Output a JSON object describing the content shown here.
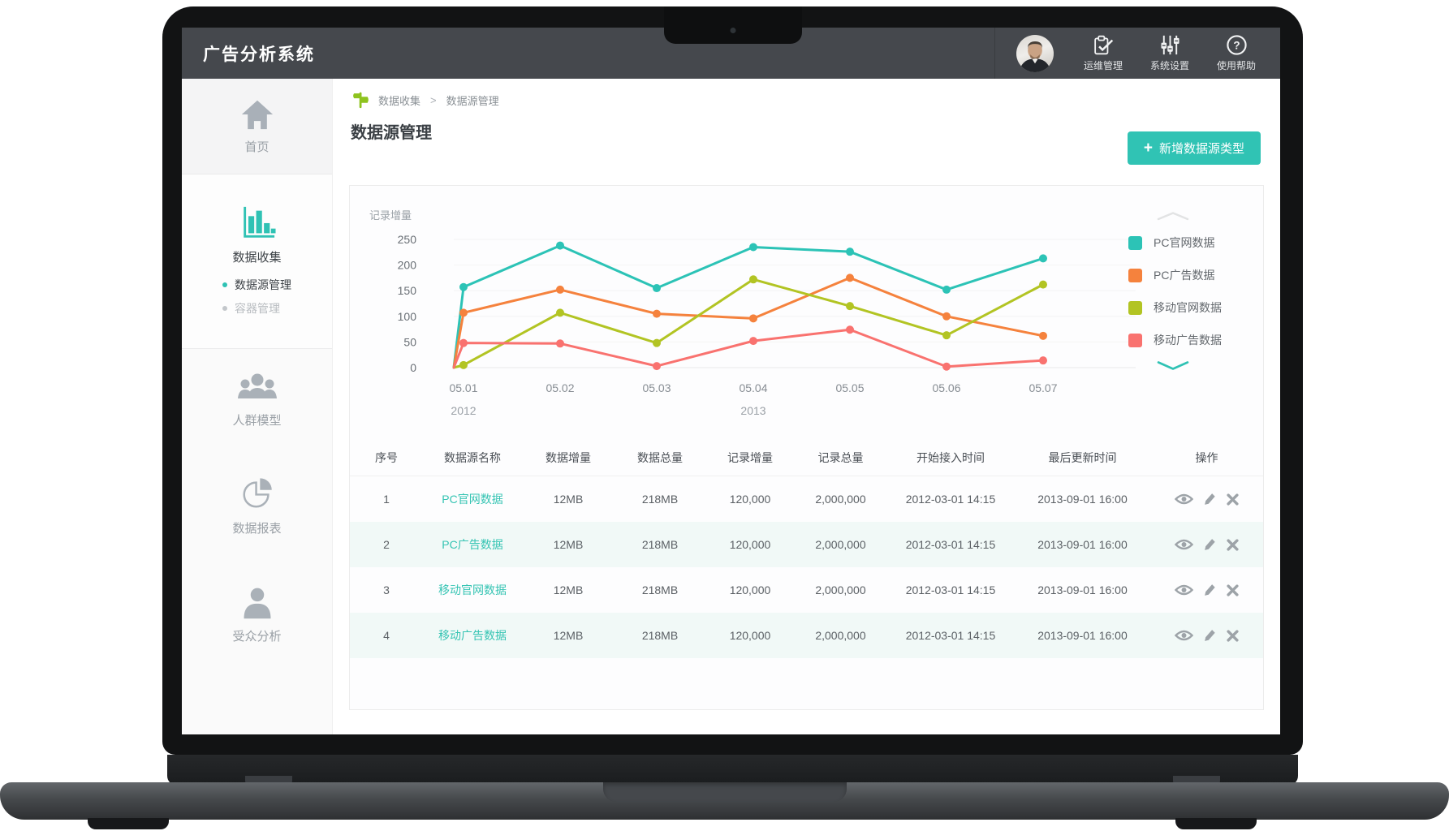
{
  "app": {
    "title": "广告分析系统"
  },
  "topbar": {
    "menu": [
      {
        "label": "运维管理",
        "icon": "clipboard-check-icon"
      },
      {
        "label": "系统设置",
        "icon": "sliders-icon"
      },
      {
        "label": "使用帮助",
        "icon": "help-icon"
      }
    ]
  },
  "sidebar": {
    "items": [
      {
        "label": "首页",
        "icon": "home-icon",
        "active": false
      },
      {
        "label": "数据收集",
        "icon": "bar-chart-icon",
        "active": true,
        "children": [
          {
            "label": "数据源管理",
            "active": true
          },
          {
            "label": "容器管理",
            "active": false
          }
        ]
      },
      {
        "label": "人群模型",
        "icon": "users-icon",
        "active": false
      },
      {
        "label": "数据报表",
        "icon": "pie-chart-icon",
        "active": false
      },
      {
        "label": "受众分析",
        "icon": "user-icon",
        "active": false
      }
    ]
  },
  "breadcrumb": {
    "crumbs": [
      "数据收集",
      "数据源管理"
    ],
    "separator": ">"
  },
  "page": {
    "title": "数据源管理",
    "add_button": {
      "icon": "+",
      "label": "新增数据源类型"
    }
  },
  "chart_data": {
    "type": "line",
    "title": "记录增量",
    "categories": [
      "05.01",
      "05.02",
      "05.03",
      "05.04",
      "05.05",
      "05.06",
      "05.07"
    ],
    "year_labels": [
      {
        "index": 0,
        "label": "2012"
      },
      {
        "index": 3,
        "label": "2013"
      }
    ],
    "y_ticks": [
      0,
      50,
      100,
      150,
      200,
      250
    ],
    "ylim": [
      0,
      250
    ],
    "grid": true,
    "legend_position": "right",
    "lines_start_at_zero": true,
    "series": [
      {
        "name": "PC官网数据",
        "color": "#2cc3b6",
        "values": [
          157,
          238,
          155,
          235,
          226,
          152,
          213
        ]
      },
      {
        "name": "PC广告数据",
        "color": "#f5823d",
        "values": [
          107,
          152,
          105,
          96,
          175,
          100,
          62
        ]
      },
      {
        "name": "移动官网数据",
        "color": "#b2c423",
        "values": [
          5,
          107,
          48,
          172,
          120,
          63,
          162
        ]
      },
      {
        "name": "移动广告数据",
        "color": "#f9726f",
        "values": [
          48,
          47,
          3,
          52,
          74,
          2,
          14
        ]
      }
    ]
  },
  "table": {
    "headers": [
      "序号",
      "数据源名称",
      "数据增量",
      "数据总量",
      "记录增量",
      "记录总量",
      "开始接入时间",
      "最后更新时间",
      "操作"
    ],
    "rows": [
      [
        "1",
        "PC官网数据",
        "12MB",
        "218MB",
        "120,000",
        "2,000,000",
        "2012-03-01  14:15",
        "2013-09-01  16:00"
      ],
      [
        "2",
        "PC广告数据",
        "12MB",
        "218MB",
        "120,000",
        "2,000,000",
        "2012-03-01  14:15",
        "2013-09-01  16:00"
      ],
      [
        "3",
        "移动官网数据",
        "12MB",
        "218MB",
        "120,000",
        "2,000,000",
        "2012-03-01  14:15",
        "2013-09-01  16:00"
      ],
      [
        "4",
        "移动广告数据",
        "12MB",
        "218MB",
        "120,000",
        "2,000,000",
        "2012-03-01  14:15",
        "2013-09-01  16:00"
      ]
    ],
    "actions": [
      "view",
      "edit",
      "delete"
    ]
  },
  "colors": {
    "accent": "#30c3b4",
    "topbar": "#45484d",
    "link": "#35c4b3",
    "row_alt": "#f1f9f7",
    "breadcrumb_icon": "#8ec31f"
  }
}
